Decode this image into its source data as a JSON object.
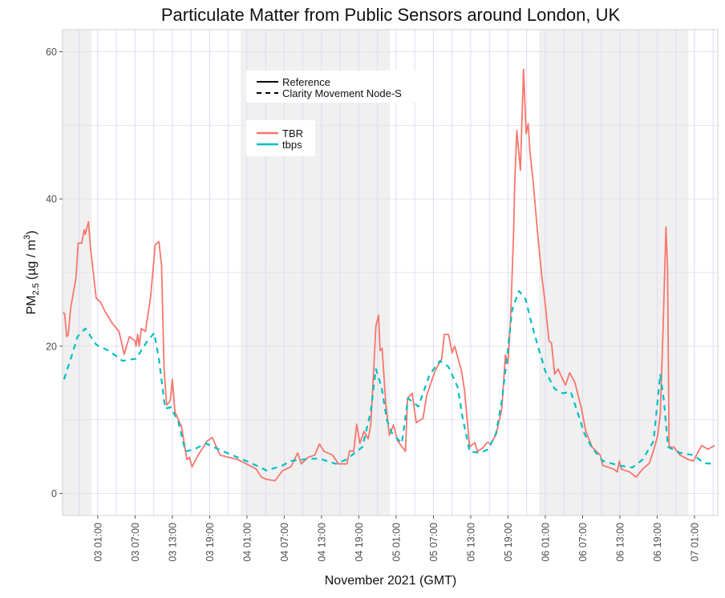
{
  "chart_data": {
    "type": "line",
    "title": "Particulate Matter from Public Sensors around London, UK",
    "xlabel": "November 2021 (GMT)",
    "ylabel": {
      "main": "PM",
      "sub": "2.5",
      "unit": "(µg / m",
      "sup": "3",
      "close": ")"
    },
    "xlim": [
      "2021-11-02 19:20",
      "2021-11-07 04:45"
    ],
    "ylim": [
      -3,
      63
    ],
    "y_ticks": [
      0,
      20,
      40,
      60
    ],
    "y_grid": [
      0,
      10,
      20,
      30,
      40,
      50,
      60
    ],
    "x_ticks": [
      {
        "t": "2021-11-03 01:00",
        "label": "03 01:00"
      },
      {
        "t": "2021-11-03 07:00",
        "label": "03 07:00"
      },
      {
        "t": "2021-11-03 13:00",
        "label": "03 13:00"
      },
      {
        "t": "2021-11-03 19:00",
        "label": "03 19:00"
      },
      {
        "t": "2021-11-04 01:00",
        "label": "04 01:00"
      },
      {
        "t": "2021-11-04 07:00",
        "label": "04 07:00"
      },
      {
        "t": "2021-11-04 13:00",
        "label": "04 13:00"
      },
      {
        "t": "2021-11-04 19:00",
        "label": "04 19:00"
      },
      {
        "t": "2021-11-05 01:00",
        "label": "05 01:00"
      },
      {
        "t": "2021-11-05 07:00",
        "label": "05 07:00"
      },
      {
        "t": "2021-11-05 13:00",
        "label": "05 13:00"
      },
      {
        "t": "2021-11-05 19:00",
        "label": "05 19:00"
      },
      {
        "t": "2021-11-06 01:00",
        "label": "06 01:00"
      },
      {
        "t": "2021-11-06 07:00",
        "label": "06 07:00"
      },
      {
        "t": "2021-11-06 13:00",
        "label": "06 13:00"
      },
      {
        "t": "2021-11-06 19:00",
        "label": "06 19:00"
      },
      {
        "t": "2021-11-07 01:00",
        "label": "07 01:00"
      }
    ],
    "x_minor_grid_hours": 3,
    "shaded_periods": [
      [
        "2021-11-02 19:20",
        "2021-11-03 00:00"
      ],
      [
        "2021-11-04 00:00",
        "2021-11-05 00:00"
      ],
      [
        "2021-11-06 00:00",
        "2021-11-07 00:00"
      ]
    ],
    "grid": true,
    "legend": {
      "placement": "top-center",
      "linetype": [
        {
          "label": "Reference",
          "dash": "solid"
        },
        {
          "label": "Clarity Movement Node-S",
          "dash": "dashed"
        }
      ],
      "colour": [
        {
          "label": "TBR",
          "color": "#F8766D"
        },
        {
          "label": "tbps",
          "color": "#00BFC4"
        }
      ]
    },
    "series": [
      {
        "name": "TBR",
        "linetype": "solid",
        "color": "#F8766D",
        "points": [
          [
            "2021-11-02 19:20",
            24.6
          ],
          [
            "2021-11-02 19:40",
            24.4
          ],
          [
            "2021-11-02 20:00",
            21.3
          ],
          [
            "2021-11-02 20:15",
            21.6
          ],
          [
            "2021-11-02 20:40",
            25.3
          ],
          [
            "2021-11-02 21:30",
            29.3
          ],
          [
            "2021-11-02 21:50",
            34.0
          ],
          [
            "2021-11-02 22:25",
            34.0
          ],
          [
            "2021-11-02 22:50",
            35.8
          ],
          [
            "2021-11-02 23:00",
            35.2
          ],
          [
            "2021-11-02 23:30",
            36.9
          ],
          [
            "2021-11-02 23:50",
            33.3
          ],
          [
            "2021-11-03 00:45",
            26.5
          ],
          [
            "2021-11-03 01:25",
            26.0
          ],
          [
            "2021-11-03 02:15",
            24.6
          ],
          [
            "2021-11-03 03:20",
            23.1
          ],
          [
            "2021-11-03 04:25",
            22.0
          ],
          [
            "2021-11-03 05:15",
            18.9
          ],
          [
            "2021-11-03 06:05",
            21.3
          ],
          [
            "2021-11-03 07:00",
            20.7
          ],
          [
            "2021-11-03 07:10",
            20.0
          ],
          [
            "2021-11-03 07:25",
            21.6
          ],
          [
            "2021-11-03 07:40",
            20.0
          ],
          [
            "2021-11-03 08:00",
            22.4
          ],
          [
            "2021-11-03 08:40",
            22.0
          ],
          [
            "2021-11-03 09:30",
            26.7
          ],
          [
            "2021-11-03 10:15",
            33.8
          ],
          [
            "2021-11-03 10:50",
            34.2
          ],
          [
            "2021-11-03 11:15",
            31.1
          ],
          [
            "2021-11-03 11:40",
            16.9
          ],
          [
            "2021-11-03 12:05",
            12.0
          ],
          [
            "2021-11-03 12:40",
            12.6
          ],
          [
            "2021-11-03 13:00",
            15.5
          ],
          [
            "2021-11-03 13:25",
            11.1
          ],
          [
            "2021-11-03 14:30",
            9.0
          ],
          [
            "2021-11-03 15:20",
            4.6
          ],
          [
            "2021-11-03 15:45",
            4.9
          ],
          [
            "2021-11-03 16:10",
            3.6
          ],
          [
            "2021-11-03 17:05",
            5.1
          ],
          [
            "2021-11-03 18:35",
            7.1
          ],
          [
            "2021-11-03 19:25",
            7.6
          ],
          [
            "2021-11-03 20:40",
            5.2
          ],
          [
            "2021-11-03 23:30",
            4.6
          ],
          [
            "2021-11-04 02:05",
            3.5
          ],
          [
            "2021-11-04 02:30",
            3.3
          ],
          [
            "2021-11-04 03:20",
            2.2
          ],
          [
            "2021-11-04 04:10",
            1.9
          ],
          [
            "2021-11-04 05:30",
            1.7
          ],
          [
            "2021-11-04 06:45",
            3.1
          ],
          [
            "2021-11-04 08:05",
            3.6
          ],
          [
            "2021-11-04 09:10",
            5.5
          ],
          [
            "2021-11-04 09:45",
            4.0
          ],
          [
            "2021-11-04 10:50",
            4.9
          ],
          [
            "2021-11-04 11:55",
            5.2
          ],
          [
            "2021-11-04 12:40",
            6.7
          ],
          [
            "2021-11-04 13:25",
            5.7
          ],
          [
            "2021-11-04 14:45",
            5.2
          ],
          [
            "2021-11-04 15:45",
            4.0
          ],
          [
            "2021-11-04 17:05",
            4.0
          ],
          [
            "2021-11-04 17:30",
            5.8
          ],
          [
            "2021-11-04 18:10",
            5.7
          ],
          [
            "2021-11-04 18:40",
            9.4
          ],
          [
            "2021-11-04 19:10",
            6.8
          ],
          [
            "2021-11-04 19:50",
            8.4
          ],
          [
            "2021-11-04 20:30",
            7.4
          ],
          [
            "2021-11-04 20:55",
            9.3
          ],
          [
            "2021-11-04 21:20",
            15.8
          ],
          [
            "2021-11-04 21:45",
            22.7
          ],
          [
            "2021-11-04 22:10",
            24.2
          ],
          [
            "2021-11-04 22:25",
            19.4
          ],
          [
            "2021-11-04 22:45",
            19.7
          ],
          [
            "2021-11-04 23:20",
            12.2
          ],
          [
            "2021-11-04 23:55",
            7.9
          ],
          [
            "2021-11-05 00:35",
            9.3
          ],
          [
            "2021-11-05 01:15",
            7.1
          ],
          [
            "2021-11-05 02:30",
            5.7
          ],
          [
            "2021-11-05 02:50",
            12.9
          ],
          [
            "2021-11-05 03:35",
            13.6
          ],
          [
            "2021-11-05 04:15",
            9.6
          ],
          [
            "2021-11-05 05:20",
            10.2
          ],
          [
            "2021-11-05 05:55",
            13.3
          ],
          [
            "2021-11-05 07:15",
            16.6
          ],
          [
            "2021-11-05 08:20",
            18.3
          ],
          [
            "2021-11-05 08:45",
            21.6
          ],
          [
            "2021-11-05 09:25",
            21.6
          ],
          [
            "2021-11-05 10:00",
            19.1
          ],
          [
            "2021-11-05 10:25",
            20.0
          ],
          [
            "2021-11-05 11:30",
            16.7
          ],
          [
            "2021-11-05 12:00",
            14.0
          ],
          [
            "2021-11-05 12:50",
            6.3
          ],
          [
            "2021-11-05 13:40",
            6.9
          ],
          [
            "2021-11-05 14:05",
            5.7
          ],
          [
            "2021-11-05 15:00",
            6.2
          ],
          [
            "2021-11-05 15:35",
            6.9
          ],
          [
            "2021-11-05 16:15",
            6.8
          ],
          [
            "2021-11-05 17:05",
            8.0
          ],
          [
            "2021-11-05 18:00",
            11.5
          ],
          [
            "2021-11-05 18:35",
            18.8
          ],
          [
            "2021-11-05 19:00",
            17.7
          ],
          [
            "2021-11-05 19:25",
            23.8
          ],
          [
            "2021-11-05 19:55",
            35.8
          ],
          [
            "2021-11-05 20:05",
            42.0
          ],
          [
            "2021-11-05 20:25",
            49.3
          ],
          [
            "2021-11-05 21:00",
            43.9
          ],
          [
            "2021-11-05 21:30",
            57.6
          ],
          [
            "2021-11-05 21:55",
            48.9
          ],
          [
            "2021-11-05 22:15",
            50.2
          ],
          [
            "2021-11-05 22:30",
            46.7
          ],
          [
            "2021-11-05 23:05",
            42.0
          ],
          [
            "2021-11-05 23:45",
            35.5
          ],
          [
            "2021-11-06 00:25",
            29.7
          ],
          [
            "2021-11-06 01:00",
            25.7
          ],
          [
            "2021-11-06 01:35",
            20.7
          ],
          [
            "2021-11-06 02:00",
            20.4
          ],
          [
            "2021-11-06 02:30",
            16.2
          ],
          [
            "2021-11-06 03:05",
            16.9
          ],
          [
            "2021-11-06 03:25",
            16.2
          ],
          [
            "2021-11-06 04:15",
            14.7
          ],
          [
            "2021-11-06 04:55",
            16.4
          ],
          [
            "2021-11-06 05:45",
            15.1
          ],
          [
            "2021-11-06 06:50",
            11.5
          ],
          [
            "2021-11-06 07:30",
            8.5
          ],
          [
            "2021-11-06 08:30",
            6.3
          ],
          [
            "2021-11-06 09:50",
            5.2
          ],
          [
            "2021-11-06 10:15",
            3.8
          ],
          [
            "2021-11-06 12:00",
            3.3
          ],
          [
            "2021-11-06 12:35",
            2.9
          ],
          [
            "2021-11-06 12:55",
            4.4
          ],
          [
            "2021-11-06 13:15",
            3.3
          ],
          [
            "2021-11-06 14:35",
            2.9
          ],
          [
            "2021-11-06 15:35",
            2.2
          ],
          [
            "2021-11-06 16:40",
            3.3
          ],
          [
            "2021-11-06 17:45",
            4.1
          ],
          [
            "2021-11-06 18:35",
            6.3
          ],
          [
            "2021-11-06 19:05",
            7.9
          ],
          [
            "2021-11-06 19:30",
            10.7
          ],
          [
            "2021-11-06 19:55",
            21.3
          ],
          [
            "2021-11-06 20:25",
            36.2
          ],
          [
            "2021-11-06 20:40",
            30.3
          ],
          [
            "2021-11-06 20:55",
            6.3
          ],
          [
            "2021-11-06 21:40",
            6.3
          ],
          [
            "2021-11-06 22:40",
            5.2
          ],
          [
            "2021-11-07 00:00",
            4.6
          ],
          [
            "2021-11-07 00:50",
            4.4
          ],
          [
            "2021-11-07 01:30",
            5.5
          ],
          [
            "2021-11-07 02:10",
            6.5
          ],
          [
            "2021-11-07 03:10",
            6.0
          ],
          [
            "2021-11-07 04:15",
            6.5
          ]
        ]
      },
      {
        "name": "tbps",
        "linetype": "dashed",
        "color": "#00BFC4",
        "points": [
          [
            "2021-11-02 19:35",
            15.5
          ],
          [
            "2021-11-02 20:40",
            18.3
          ],
          [
            "2021-11-02 21:45",
            21.3
          ],
          [
            "2021-11-02 23:00",
            22.4
          ],
          [
            "2021-11-03 00:45",
            20.2
          ],
          [
            "2021-11-03 02:55",
            19.3
          ],
          [
            "2021-11-03 05:00",
            18.0
          ],
          [
            "2021-11-03 07:10",
            18.3
          ],
          [
            "2021-11-03 08:50",
            20.5
          ],
          [
            "2021-11-03 10:05",
            21.8
          ],
          [
            "2021-11-03 10:50",
            18.3
          ],
          [
            "2021-11-03 11:50",
            11.5
          ],
          [
            "2021-11-03 12:45",
            11.7
          ],
          [
            "2021-11-03 14:00",
            9.6
          ],
          [
            "2021-11-03 15:05",
            5.7
          ],
          [
            "2021-11-03 16:35",
            6.0
          ],
          [
            "2021-11-03 18:20",
            6.8
          ],
          [
            "2021-11-03 20:55",
            5.8
          ],
          [
            "2021-11-04 00:20",
            4.6
          ],
          [
            "2021-11-04 02:30",
            3.8
          ],
          [
            "2021-11-04 04:10",
            3.1
          ],
          [
            "2021-11-04 06:45",
            3.8
          ],
          [
            "2021-11-04 08:00",
            4.4
          ],
          [
            "2021-11-04 11:05",
            4.7
          ],
          [
            "2021-11-04 12:45",
            4.7
          ],
          [
            "2021-11-04 15:20",
            4.0
          ],
          [
            "2021-11-04 17:00",
            4.6
          ],
          [
            "2021-11-04 19:35",
            6.3
          ],
          [
            "2021-11-04 20:55",
            11.1
          ],
          [
            "2021-11-04 21:45",
            16.9
          ],
          [
            "2021-11-04 22:40",
            14.4
          ],
          [
            "2021-11-04 23:30",
            10.0
          ],
          [
            "2021-11-05 00:20",
            8.2
          ],
          [
            "2021-11-05 01:55",
            6.8
          ],
          [
            "2021-11-05 02:55",
            12.9
          ],
          [
            "2021-11-05 04:35",
            11.8
          ],
          [
            "2021-11-05 06:25",
            16.2
          ],
          [
            "2021-11-05 08:05",
            18.0
          ],
          [
            "2021-11-05 09:25",
            17.2
          ],
          [
            "2021-11-05 10:55",
            14.4
          ],
          [
            "2021-11-05 11:40",
            10.4
          ],
          [
            "2021-11-05 12:50",
            5.7
          ],
          [
            "2021-11-05 14:30",
            5.5
          ],
          [
            "2021-11-05 15:50",
            6.0
          ],
          [
            "2021-11-05 17:05",
            8.2
          ],
          [
            "2021-11-05 18:00",
            12.6
          ],
          [
            "2021-11-05 18:50",
            18.3
          ],
          [
            "2021-11-05 19:40",
            24.9
          ],
          [
            "2021-11-05 20:45",
            27.5
          ],
          [
            "2021-11-05 21:50",
            26.4
          ],
          [
            "2021-11-05 22:40",
            23.5
          ],
          [
            "2021-11-05 23:45",
            20.2
          ],
          [
            "2021-11-06 01:00",
            16.6
          ],
          [
            "2021-11-06 02:30",
            14.2
          ],
          [
            "2021-11-06 03:50",
            13.6
          ],
          [
            "2021-11-06 05:05",
            13.8
          ],
          [
            "2021-11-06 06:00",
            11.5
          ],
          [
            "2021-11-06 07:15",
            8.2
          ],
          [
            "2021-11-06 08:30",
            6.2
          ],
          [
            "2021-11-06 10:15",
            4.4
          ],
          [
            "2021-11-06 12:50",
            3.8
          ],
          [
            "2021-11-06 15:00",
            3.5
          ],
          [
            "2021-11-06 16:40",
            4.6
          ],
          [
            "2021-11-06 18:25",
            7.1
          ],
          [
            "2021-11-06 19:30",
            16.2
          ],
          [
            "2021-11-06 20:05",
            12.6
          ],
          [
            "2021-11-06 20:45",
            6.3
          ],
          [
            "2021-11-06 22:40",
            5.5
          ],
          [
            "2021-11-07 00:50",
            5.2
          ],
          [
            "2021-11-07 02:35",
            4.1
          ],
          [
            "2021-11-07 04:15",
            4.0
          ]
        ]
      }
    ]
  }
}
